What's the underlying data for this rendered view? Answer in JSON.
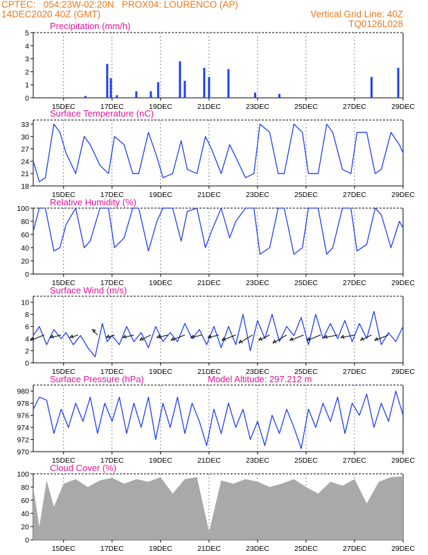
{
  "header": {
    "line1_left": "CPTEC:   054:23W-02:20N   PROX04: LOURENCO (AP)",
    "line2_left": "14DEC2020 40Z (GMT)",
    "line2_right": "Vertical Grid Line: 40Z",
    "line3_right": "TQ0126L028"
  },
  "chart_data": [
    {
      "type": "bar",
      "title": "Precipitation (mm/h)",
      "xticks": [
        "15DEC",
        "17DEC",
        "19DEC",
        "21DEC",
        "23DEC",
        "25DEC",
        "27DEC",
        "29DEC"
      ],
      "xlim_days": [
        13.75,
        29.0
      ],
      "ylim": [
        0,
        5
      ],
      "yticks": [
        0,
        1,
        2,
        3,
        4,
        5
      ],
      "color": "#1f3ff5",
      "events": [
        {
          "day": 15.9,
          "value": 0.15
        },
        {
          "day": 16.8,
          "value": 2.6
        },
        {
          "day": 16.95,
          "value": 1.5
        },
        {
          "day": 17.2,
          "value": 0.2
        },
        {
          "day": 18.0,
          "value": 0.5
        },
        {
          "day": 18.6,
          "value": 0.5
        },
        {
          "day": 18.9,
          "value": 1.2
        },
        {
          "day": 19.8,
          "value": 2.8
        },
        {
          "day": 20.0,
          "value": 1.3
        },
        {
          "day": 20.8,
          "value": 2.3
        },
        {
          "day": 21.0,
          "value": 1.6
        },
        {
          "day": 21.8,
          "value": 2.2
        },
        {
          "day": 22.9,
          "value": 0.4
        },
        {
          "day": 23.9,
          "value": 0.3
        },
        {
          "day": 27.7,
          "value": 1.6
        },
        {
          "day": 28.8,
          "value": 2.3
        }
      ]
    },
    {
      "type": "line",
      "title": "Surface Temperature (nC)",
      "xticks": [
        "15DEC",
        "17DEC",
        "19DEC",
        "21DEC",
        "23DEC",
        "25DEC",
        "27DEC",
        "29DEC"
      ],
      "ylim": [
        18,
        34
      ],
      "yticks": [
        18,
        21,
        24,
        27,
        30,
        33
      ],
      "color": "#1f3ff5",
      "x": [
        13.75,
        14.0,
        14.25,
        14.6,
        14.85,
        15.1,
        15.5,
        15.85,
        16.1,
        16.5,
        16.85,
        17.1,
        17.5,
        17.85,
        18.1,
        18.5,
        18.85,
        19.1,
        19.5,
        19.85,
        20.1,
        20.5,
        20.85,
        21.1,
        21.5,
        21.85,
        22.1,
        22.5,
        22.85,
        23.1,
        23.5,
        23.85,
        24.1,
        24.5,
        24.85,
        25.1,
        25.5,
        25.85,
        26.1,
        26.5,
        26.85,
        27.1,
        27.5,
        27.85,
        28.1,
        28.5,
        28.85,
        29.0
      ],
      "y": [
        24,
        19,
        20,
        33,
        31,
        26,
        21,
        30,
        28,
        23,
        21,
        30,
        28,
        21,
        21,
        31,
        25,
        20,
        21,
        29,
        22,
        21,
        30,
        27,
        21,
        28,
        25,
        20,
        21,
        33,
        31,
        21,
        21,
        33,
        31,
        21,
        21,
        33,
        31,
        22,
        21,
        31,
        31,
        21,
        22,
        31,
        28,
        26
      ]
    },
    {
      "type": "line",
      "title": "Relative Humidity (%)",
      "xticks": [
        "15DEC",
        "17DEC",
        "19DEC",
        "21DEC",
        "23DEC",
        "25DEC",
        "27DEC",
        "29DEC"
      ],
      "ylim": [
        0,
        100
      ],
      "yticks": [
        0,
        20,
        40,
        60,
        80,
        100
      ],
      "color": "#1f3ff5",
      "x": [
        13.75,
        14.0,
        14.25,
        14.6,
        14.85,
        15.1,
        15.5,
        15.85,
        16.1,
        16.5,
        16.85,
        17.1,
        17.5,
        17.85,
        18.1,
        18.5,
        18.85,
        19.1,
        19.5,
        19.85,
        20.1,
        20.5,
        20.85,
        21.1,
        21.5,
        21.85,
        22.1,
        22.5,
        22.85,
        23.1,
        23.5,
        23.85,
        24.1,
        24.5,
        24.85,
        25.1,
        25.5,
        25.85,
        26.1,
        26.5,
        26.85,
        27.1,
        27.5,
        27.85,
        28.1,
        28.5,
        28.85,
        29.0
      ],
      "y": [
        65,
        100,
        100,
        35,
        40,
        75,
        100,
        40,
        50,
        100,
        100,
        40,
        55,
        100,
        100,
        35,
        80,
        100,
        100,
        50,
        95,
        100,
        40,
        65,
        100,
        55,
        80,
        100,
        100,
        30,
        40,
        100,
        100,
        30,
        40,
        100,
        100,
        30,
        40,
        100,
        100,
        35,
        45,
        100,
        90,
        40,
        80,
        70
      ]
    },
    {
      "type": "line",
      "title": "Surface Wind (m/s)",
      "xticks": [
        "15DEC",
        "17DEC",
        "19DEC",
        "21DEC",
        "23DEC",
        "25DEC",
        "27DEC",
        "29DEC"
      ],
      "ylim": [
        0,
        11
      ],
      "yticks": [
        0,
        2,
        4,
        6,
        8,
        10
      ],
      "color": "#1f3ff5",
      "x": [
        13.75,
        14.0,
        14.3,
        14.6,
        14.9,
        15.1,
        15.4,
        15.7,
        16.0,
        16.3,
        16.6,
        16.8,
        17.0,
        17.3,
        17.6,
        17.9,
        18.2,
        18.5,
        18.8,
        19.1,
        19.4,
        19.7,
        20.0,
        20.3,
        20.6,
        20.9,
        21.2,
        21.5,
        21.8,
        22.1,
        22.4,
        22.7,
        23.0,
        23.3,
        23.6,
        23.9,
        24.2,
        24.5,
        24.8,
        25.1,
        25.4,
        25.7,
        26.0,
        26.3,
        26.6,
        26.9,
        27.2,
        27.5,
        27.8,
        28.1,
        28.4,
        28.7,
        29.0
      ],
      "y": [
        4.5,
        6,
        3,
        5.5,
        4,
        5,
        3,
        4.5,
        2.5,
        1,
        6.5,
        3.5,
        4.5,
        3,
        6,
        3.5,
        5,
        2.5,
        6,
        3.5,
        5,
        3.5,
        6.5,
        4,
        5.5,
        3,
        6,
        2.5,
        6,
        3,
        8,
        2,
        7,
        4,
        8,
        3.5,
        6,
        4.5,
        7.5,
        3,
        8,
        4,
        6.5,
        4,
        7,
        3.5,
        6.5,
        4,
        8.5,
        3,
        5,
        3.5,
        6
      ],
      "vectors": [
        {
          "day": 14.2,
          "u": -5,
          "v": -2
        },
        {
          "day": 14.9,
          "u": -4,
          "v": -1
        },
        {
          "day": 15.6,
          "u": -3,
          "v": -1
        },
        {
          "day": 16.4,
          "u": -2,
          "v": 2
        },
        {
          "day": 17.1,
          "u": -3,
          "v": -1
        },
        {
          "day": 17.9,
          "u": -4,
          "v": -1
        },
        {
          "day": 18.6,
          "u": -4,
          "v": -2
        },
        {
          "day": 19.3,
          "u": -4,
          "v": -1
        },
        {
          "day": 20.0,
          "u": -5,
          "v": -2
        },
        {
          "day": 20.7,
          "u": -4,
          "v": -1
        },
        {
          "day": 21.4,
          "u": -4,
          "v": -1
        },
        {
          "day": 22.1,
          "u": -5,
          "v": -2
        },
        {
          "day": 22.8,
          "u": -5,
          "v": -3
        },
        {
          "day": 23.5,
          "u": -4,
          "v": -2
        },
        {
          "day": 24.2,
          "u": -5,
          "v": -3
        },
        {
          "day": 24.9,
          "u": -5,
          "v": -2
        },
        {
          "day": 25.6,
          "u": -5,
          "v": -2
        },
        {
          "day": 26.3,
          "u": -5,
          "v": -1
        },
        {
          "day": 27.0,
          "u": -5,
          "v": -1
        },
        {
          "day": 27.7,
          "u": -4,
          "v": -2
        },
        {
          "day": 28.4,
          "u": -5,
          "v": -2
        }
      ]
    },
    {
      "type": "line",
      "title": "Surface Pressure (hPa)",
      "annotation": "Model Altitude: 297.212 m",
      "xticks": [
        "15DEC",
        "17DEC",
        "19DEC",
        "21DEC",
        "23DEC",
        "25DEC",
        "27DEC",
        "29DEC"
      ],
      "ylim": [
        970,
        981
      ],
      "yticks": [
        970,
        972,
        974,
        976,
        978,
        980
      ],
      "color": "#1f3ff5",
      "x": [
        13.75,
        14.0,
        14.3,
        14.6,
        14.9,
        15.2,
        15.5,
        15.8,
        16.1,
        16.4,
        16.7,
        17.0,
        17.3,
        17.6,
        17.9,
        18.2,
        18.5,
        18.8,
        19.1,
        19.4,
        19.7,
        20.0,
        20.3,
        20.6,
        20.9,
        21.2,
        21.5,
        21.8,
        22.1,
        22.4,
        22.7,
        23.0,
        23.3,
        23.6,
        23.9,
        24.2,
        24.5,
        24.8,
        25.1,
        25.4,
        25.7,
        26.0,
        26.3,
        26.6,
        26.9,
        27.2,
        27.5,
        27.8,
        28.1,
        28.4,
        28.7,
        29.0
      ],
      "y": [
        977,
        979,
        978.5,
        973,
        977,
        974,
        978,
        975,
        979,
        973,
        978,
        975,
        979,
        973,
        978,
        974,
        979,
        972,
        978,
        974,
        979,
        973,
        978,
        975,
        971,
        977,
        973,
        978,
        974,
        977,
        972,
        975,
        971,
        976,
        973,
        977,
        974,
        970.5,
        977,
        974,
        978,
        975,
        979,
        973,
        978,
        976,
        979.5,
        974,
        978,
        975,
        980,
        976
      ]
    },
    {
      "type": "area",
      "title": "Cloud Cover (%)",
      "xticks": [
        "15DEC",
        "17DEC",
        "19DEC",
        "21DEC",
        "23DEC",
        "25DEC",
        "27DEC",
        "29DEC"
      ],
      "ylim": [
        0,
        100
      ],
      "yticks": [
        0,
        20,
        40,
        60,
        80,
        100
      ],
      "color": "#a9a9a9",
      "x": [
        13.75,
        14.0,
        14.3,
        14.6,
        15.0,
        15.5,
        16.0,
        16.5,
        17.0,
        17.5,
        18.0,
        18.5,
        19.0,
        19.5,
        20.0,
        20.5,
        21.0,
        21.5,
        22.0,
        22.5,
        23.0,
        23.5,
        24.0,
        24.5,
        25.0,
        25.5,
        26.0,
        26.5,
        27.0,
        27.5,
        28.0,
        28.5,
        29.0
      ],
      "y": [
        80,
        20,
        90,
        50,
        85,
        92,
        80,
        90,
        94,
        85,
        92,
        88,
        95,
        70,
        92,
        95,
        12,
        90,
        85,
        92,
        88,
        80,
        85,
        92,
        80,
        70,
        88,
        82,
        92,
        55,
        88,
        95,
        96
      ]
    }
  ]
}
